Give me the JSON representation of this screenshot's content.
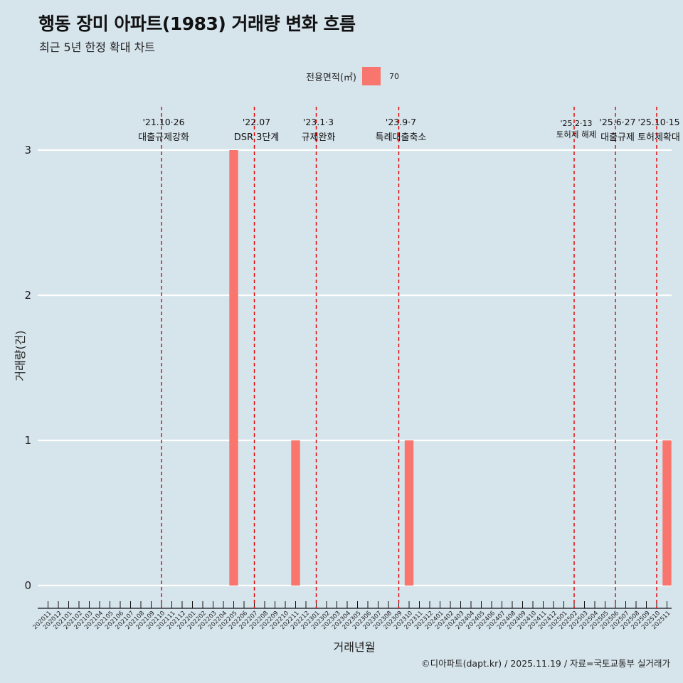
{
  "header": {
    "title": "행동 장미 아파트(1983) 거래량 변화 흐름",
    "subtitle": "최근 5년 한정 확대 차트"
  },
  "legend": {
    "title": "전용면적(㎡)",
    "key": "70",
    "color": "#f8766d"
  },
  "caption": "©디아파트(dapt.kr) / 2025.11.19 / 자료=국토교통부 실거래가",
  "colors": {
    "background": "#d6e4ec",
    "bar": "#f8766d",
    "event_line": "#e00000",
    "grid": "#ffffff"
  },
  "chart_data": {
    "type": "bar",
    "title": "행동 장미 아파트(1983) 거래량 변화 흐름",
    "subtitle": "최근 5년 한정 확대 차트",
    "xlabel": "거래년월",
    "ylabel": "거래량(건)",
    "ylim": [
      0,
      3
    ],
    "yticks": [
      0,
      1,
      2,
      3
    ],
    "grid": true,
    "legend_position": "top",
    "categories": [
      "202011",
      "202012",
      "202101",
      "202102",
      "202103",
      "202104",
      "202105",
      "202106",
      "202107",
      "202108",
      "202109",
      "202110",
      "202111",
      "202112",
      "202201",
      "202202",
      "202203",
      "202204",
      "202205",
      "202206",
      "202207",
      "202208",
      "202209",
      "202210",
      "202211",
      "202212",
      "202301",
      "202302",
      "202303",
      "202304",
      "202305",
      "202306",
      "202307",
      "202308",
      "202309",
      "202310",
      "202311",
      "202312",
      "202401",
      "202402",
      "202403",
      "202404",
      "202405",
      "202406",
      "202407",
      "202408",
      "202409",
      "202410",
      "202411",
      "202412",
      "202501",
      "202502",
      "202503",
      "202504",
      "202505",
      "202506",
      "202507",
      "202508",
      "202509",
      "202510",
      "202511"
    ],
    "series": [
      {
        "name": "70",
        "values": [
          0,
          0,
          0,
          0,
          0,
          0,
          0,
          0,
          0,
          0,
          0,
          0,
          0,
          0,
          0,
          0,
          0,
          0,
          3,
          0,
          0,
          0,
          0,
          0,
          1,
          0,
          0,
          0,
          0,
          0,
          0,
          0,
          0,
          0,
          0,
          1,
          0,
          0,
          0,
          0,
          0,
          0,
          0,
          0,
          0,
          0,
          0,
          0,
          0,
          0,
          0,
          0,
          0,
          0,
          0,
          0,
          0,
          0,
          0,
          0,
          1
        ]
      }
    ],
    "events": [
      {
        "month": "202110",
        "date": "'21.10·26",
        "label": "대출규제강화"
      },
      {
        "month": "202207",
        "date": "'22.07",
        "label": "DSR 3단계"
      },
      {
        "month": "202301",
        "date": "'23.1·3",
        "label": "규제완화"
      },
      {
        "month": "202309",
        "date": "'23.9·7",
        "label": "특례대출축소"
      },
      {
        "month": "202502",
        "date": "'25.2·13",
        "label": "토허제 해제"
      },
      {
        "month": "202506",
        "date": "'25.6·27",
        "label": "대출규제"
      },
      {
        "month": "202510",
        "date": "'25.10·15",
        "label": "토허제확대"
      }
    ]
  }
}
